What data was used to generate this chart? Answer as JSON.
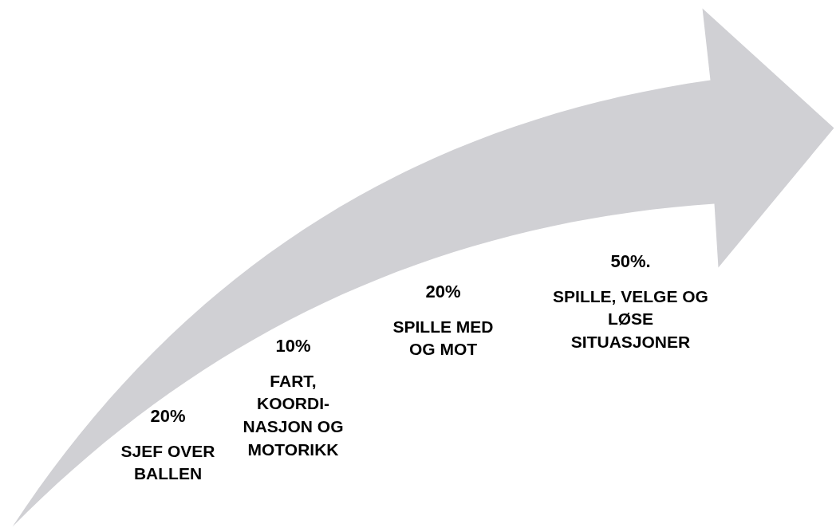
{
  "chart_data": {
    "type": "other",
    "categories": [
      "SJEF OVER\nBALLEN",
      "FART,\nKOORDI-\nNASJON OG\nMOTORIKK",
      "SPILLE MED\nOG MOT",
      "SPILLE, VELGE OG\nLØSE\nSITUASJONER"
    ],
    "values": [
      20,
      10,
      20,
      50
    ],
    "value_labels": [
      "20%",
      "10%",
      "20%",
      "50%."
    ]
  }
}
